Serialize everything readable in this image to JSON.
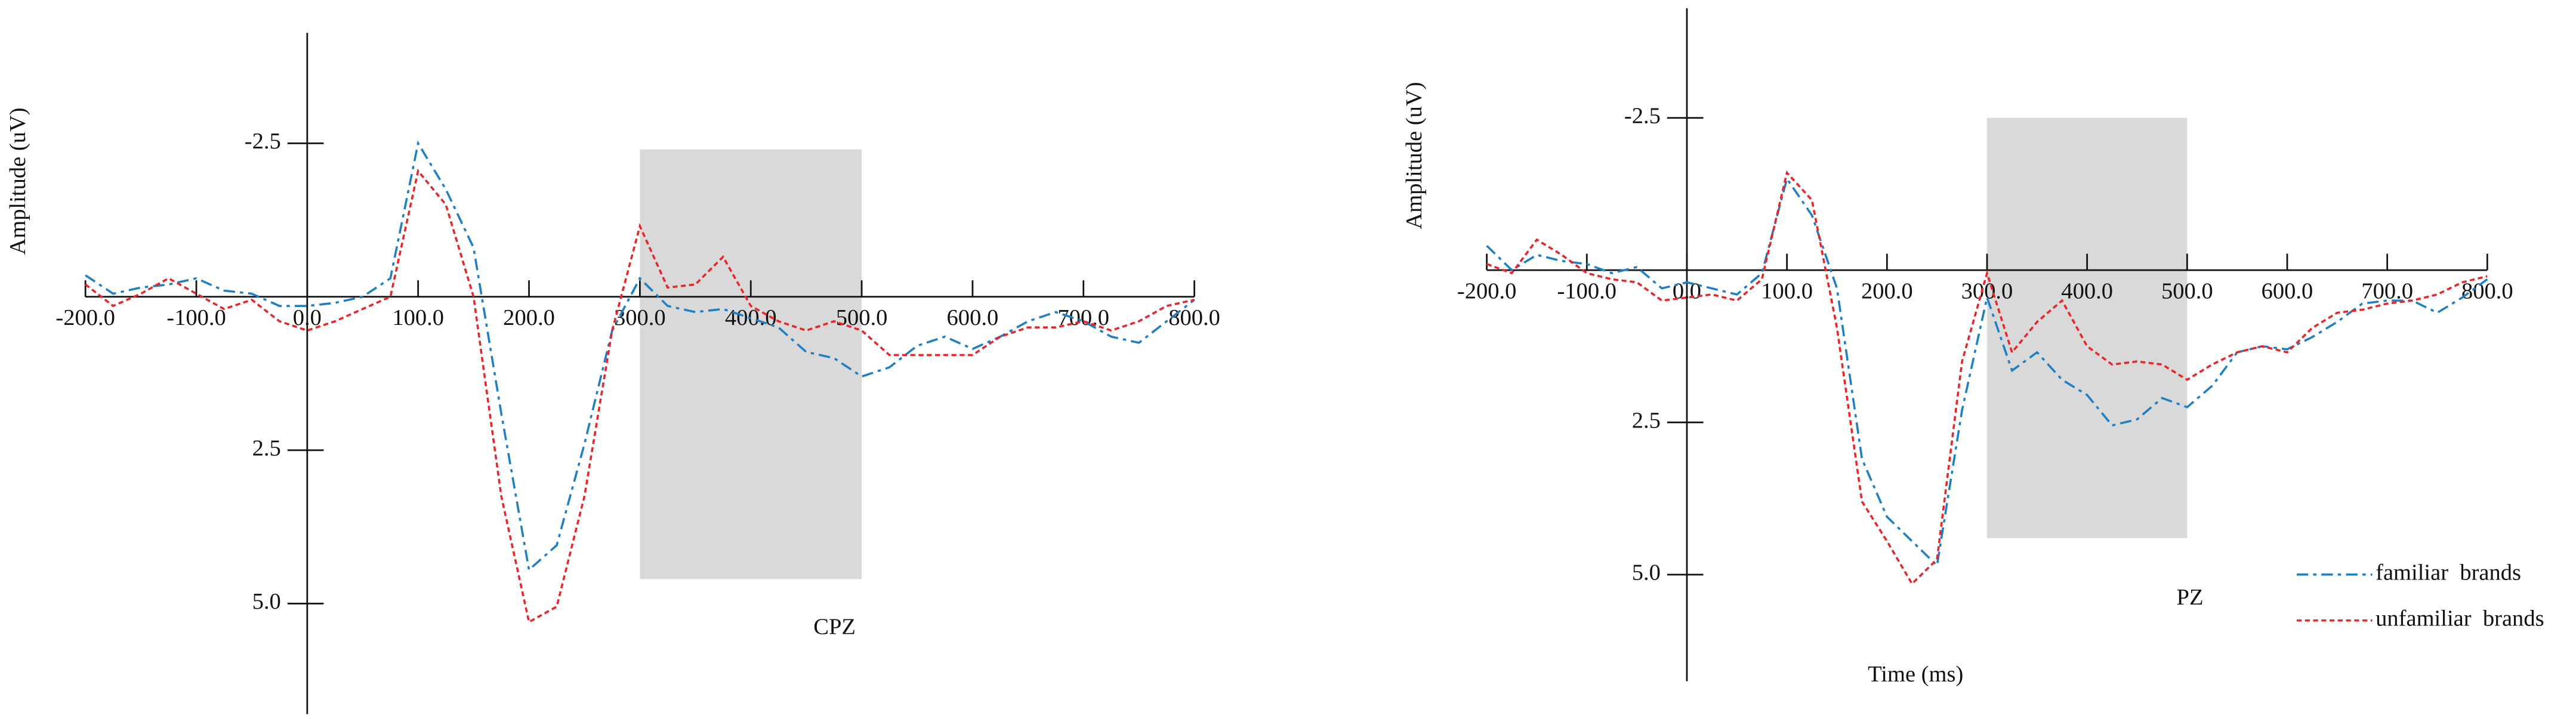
{
  "chart_data": [
    {
      "type": "line",
      "annotation": "CPZ",
      "y_label": "Amplitude (uV)",
      "y_inverted": true,
      "xlim": [
        -200,
        800
      ],
      "ylim": [
        -4.3,
        6.8
      ],
      "xticks": [
        {
          "value": -200,
          "label": "-200.0"
        },
        {
          "value": -100,
          "label": "-100.0"
        },
        {
          "value": 0,
          "label": "0.0"
        },
        {
          "value": 100,
          "label": "100.0"
        },
        {
          "value": 200,
          "label": "200.0"
        },
        {
          "value": 300,
          "label": "300.0"
        },
        {
          "value": 400,
          "label": "400.0"
        },
        {
          "value": 500,
          "label": "500.0"
        },
        {
          "value": 600,
          "label": "600.0"
        },
        {
          "value": 700,
          "label": "700.0"
        },
        {
          "value": 800,
          "label": "800.0"
        }
      ],
      "yticks": [
        -2.5,
        2.5,
        {
          "value": 5,
          "label": "5.0"
        }
      ],
      "highlight": {
        "xlim": [
          300,
          500
        ],
        "ylim": [
          -2.4,
          4.6
        ],
        "color": "#d9d9d9"
      },
      "x": [
        -200,
        -175,
        -150,
        -125,
        -100,
        -75,
        -50,
        -25,
        0,
        25,
        50,
        75,
        100,
        125,
        150,
        175,
        200,
        225,
        250,
        275,
        300,
        325,
        350,
        375,
        400,
        425,
        450,
        475,
        500,
        525,
        550,
        575,
        600,
        625,
        650,
        675,
        700,
        725,
        750,
        775,
        800
      ],
      "series": [
        {
          "color": "#1f7fc4",
          "values": [
            -0.35,
            -0.05,
            -0.15,
            -0.2,
            -0.3,
            -0.1,
            -0.05,
            0.15,
            0.15,
            0.1,
            0,
            -0.3,
            -2.5,
            -1.75,
            -0.8,
            1.9,
            4.45,
            4.05,
            2.4,
            0.55,
            -0.3,
            0.15,
            0.25,
            0.2,
            0.35,
            0.5,
            0.9,
            1.0,
            1.3,
            1.15,
            0.8,
            0.65,
            0.85,
            0.65,
            0.4,
            0.25,
            0.4,
            0.65,
            0.75,
            0.4,
            0.05
          ]
        },
        {
          "color": "#e8262a",
          "values": [
            -0.2,
            0.15,
            -0.05,
            -0.3,
            -0.05,
            0.2,
            0.05,
            0.4,
            0.55,
            0.4,
            0.2,
            0,
            -2.05,
            -1.5,
            0,
            3.25,
            5.3,
            5.05,
            3.25,
            0.55,
            -1.15,
            -0.15,
            -0.2,
            -0.65,
            0.15,
            0.4,
            0.55,
            0.4,
            0.55,
            0.95,
            0.95,
            0.95,
            0.95,
            0.65,
            0.5,
            0.5,
            0.4,
            0.55,
            0.4,
            0.15,
            0.05
          ]
        }
      ]
    },
    {
      "type": "line",
      "annotation": "PZ",
      "y_label": "Amplitude (uV)",
      "x_label": "Time (ms)",
      "y_inverted": true,
      "legend": "lower right",
      "xlim": [
        -200,
        800
      ],
      "ylim": [
        -4.3,
        6.75
      ],
      "xticks": [
        {
          "value": -200,
          "label": "-200.0"
        },
        {
          "value": -100,
          "label": "-100.0"
        },
        {
          "value": 0,
          "label": "0.0"
        },
        {
          "value": 100,
          "label": "100.0"
        },
        {
          "value": 200,
          "label": "200.0"
        },
        {
          "value": 300,
          "label": "300.0"
        },
        {
          "value": 400,
          "label": "400.0"
        },
        {
          "value": 500,
          "label": "500.0"
        },
        {
          "value": 600,
          "label": "600.0"
        },
        {
          "value": 700,
          "label": "700.0"
        },
        {
          "value": 800,
          "label": "800.0"
        }
      ],
      "yticks": [
        -2.5,
        2.5,
        {
          "value": 5,
          "label": "5.0"
        }
      ],
      "highlight": {
        "xlim": [
          300,
          500
        ],
        "ylim": [
          -2.5,
          4.4
        ],
        "color": "#d9d9d9"
      },
      "x": [
        -200,
        -175,
        -150,
        -125,
        -100,
        -75,
        -50,
        -25,
        0,
        25,
        50,
        75,
        100,
        125,
        150,
        175,
        200,
        225,
        250,
        275,
        300,
        325,
        350,
        375,
        400,
        425,
        450,
        475,
        500,
        525,
        550,
        575,
        600,
        625,
        650,
        675,
        700,
        725,
        750,
        775,
        800
      ],
      "series": [
        {
          "name": "familiar  brands",
          "color": "#1f7fc4",
          "values": [
            -0.4,
            0,
            -0.25,
            -0.15,
            -0.1,
            0.05,
            -0.05,
            0.3,
            0.2,
            0.3,
            0.4,
            0.05,
            -1.5,
            -0.9,
            0.3,
            3.1,
            4.05,
            4.45,
            4.85,
            2.3,
            0.45,
            1.65,
            1.35,
            1.8,
            2.05,
            2.55,
            2.45,
            2.1,
            2.25,
            1.9,
            1.35,
            1.25,
            1.3,
            1.1,
            0.85,
            0.55,
            0.5,
            0.5,
            0.7,
            0.45,
            0.15
          ]
        },
        {
          "name": "unfamiliar  brands",
          "color": "#e8262a",
          "values": [
            -0.1,
            0.05,
            -0.5,
            -0.25,
            0.05,
            0.15,
            0.2,
            0.5,
            0.45,
            0.4,
            0.5,
            0.15,
            -1.6,
            -1.15,
            0.95,
            3.8,
            4.45,
            5.15,
            4.75,
            1.5,
            0.05,
            1.35,
            0.85,
            0.5,
            1.25,
            1.55,
            1.5,
            1.55,
            1.8,
            1.55,
            1.35,
            1.25,
            1.35,
            0.95,
            0.7,
            0.65,
            0.55,
            0.5,
            0.4,
            0.2,
            0.1
          ]
        }
      ]
    }
  ]
}
